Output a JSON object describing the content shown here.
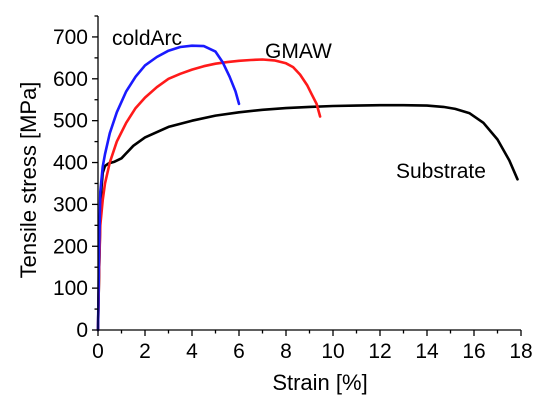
{
  "chart_data": {
    "type": "line",
    "title": "",
    "xlabel": "Strain [%]",
    "ylabel": "Tensile stress [MPa]",
    "xlim": [
      0,
      18
    ],
    "ylim": [
      0,
      750
    ],
    "x_ticks": [
      "0",
      "2",
      "4",
      "6",
      "8",
      "10",
      "12",
      "14",
      "16",
      "18"
    ],
    "y_ticks": [
      "0",
      "100",
      "200",
      "300",
      "400",
      "500",
      "600",
      "700"
    ],
    "grid": false,
    "legend": "none",
    "series": [
      {
        "name": "Substrate",
        "color": "#000000",
        "x": [
          0.0,
          0.05,
          0.1,
          0.15,
          0.2,
          0.3,
          0.45,
          0.7,
          1.0,
          1.5,
          2.0,
          3.0,
          4.0,
          5.0,
          6.0,
          7.0,
          8.0,
          9.0,
          10.0,
          11.0,
          12.0,
          13.0,
          14.0,
          14.7,
          15.2,
          15.8,
          16.4,
          17.0,
          17.5,
          17.85
        ],
        "y": [
          0,
          150,
          270,
          340,
          375,
          392,
          398,
          402,
          410,
          440,
          460,
          485,
          500,
          512,
          520,
          526,
          530,
          533,
          535,
          536,
          537,
          537,
          536,
          533,
          528,
          518,
          495,
          455,
          405,
          360
        ]
      },
      {
        "name": "GMAW",
        "color": "#ff1a1a",
        "x": [
          0.0,
          0.05,
          0.1,
          0.2,
          0.3,
          0.5,
          0.8,
          1.2,
          1.6,
          2.0,
          2.5,
          3.0,
          3.5,
          4.0,
          4.5,
          5.0,
          5.5,
          6.0,
          6.5,
          7.0,
          7.5,
          8.0,
          8.3,
          8.6,
          8.9,
          9.1,
          9.3,
          9.45
        ],
        "y": [
          0,
          150,
          250,
          310,
          350,
          400,
          450,
          495,
          530,
          555,
          580,
          600,
          612,
          622,
          630,
          636,
          640,
          643,
          645,
          646,
          644,
          637,
          628,
          610,
          585,
          562,
          540,
          510
        ]
      },
      {
        "name": "coldArc",
        "color": "#1a1aff",
        "x": [
          0.0,
          0.05,
          0.1,
          0.2,
          0.3,
          0.5,
          0.8,
          1.2,
          1.6,
          2.0,
          2.5,
          3.0,
          3.5,
          4.0,
          4.5,
          5.0,
          5.3,
          5.6,
          5.85,
          6.0
        ],
        "y": [
          0,
          200,
          330,
          390,
          420,
          470,
          520,
          570,
          605,
          632,
          652,
          667,
          676,
          679,
          678,
          665,
          640,
          605,
          570,
          540
        ]
      }
    ],
    "annotations": [
      {
        "text": "coldArc",
        "series": "coldArc"
      },
      {
        "text": "GMAW",
        "series": "GMAW"
      },
      {
        "text": "Substrate",
        "series": "Substrate"
      }
    ]
  }
}
